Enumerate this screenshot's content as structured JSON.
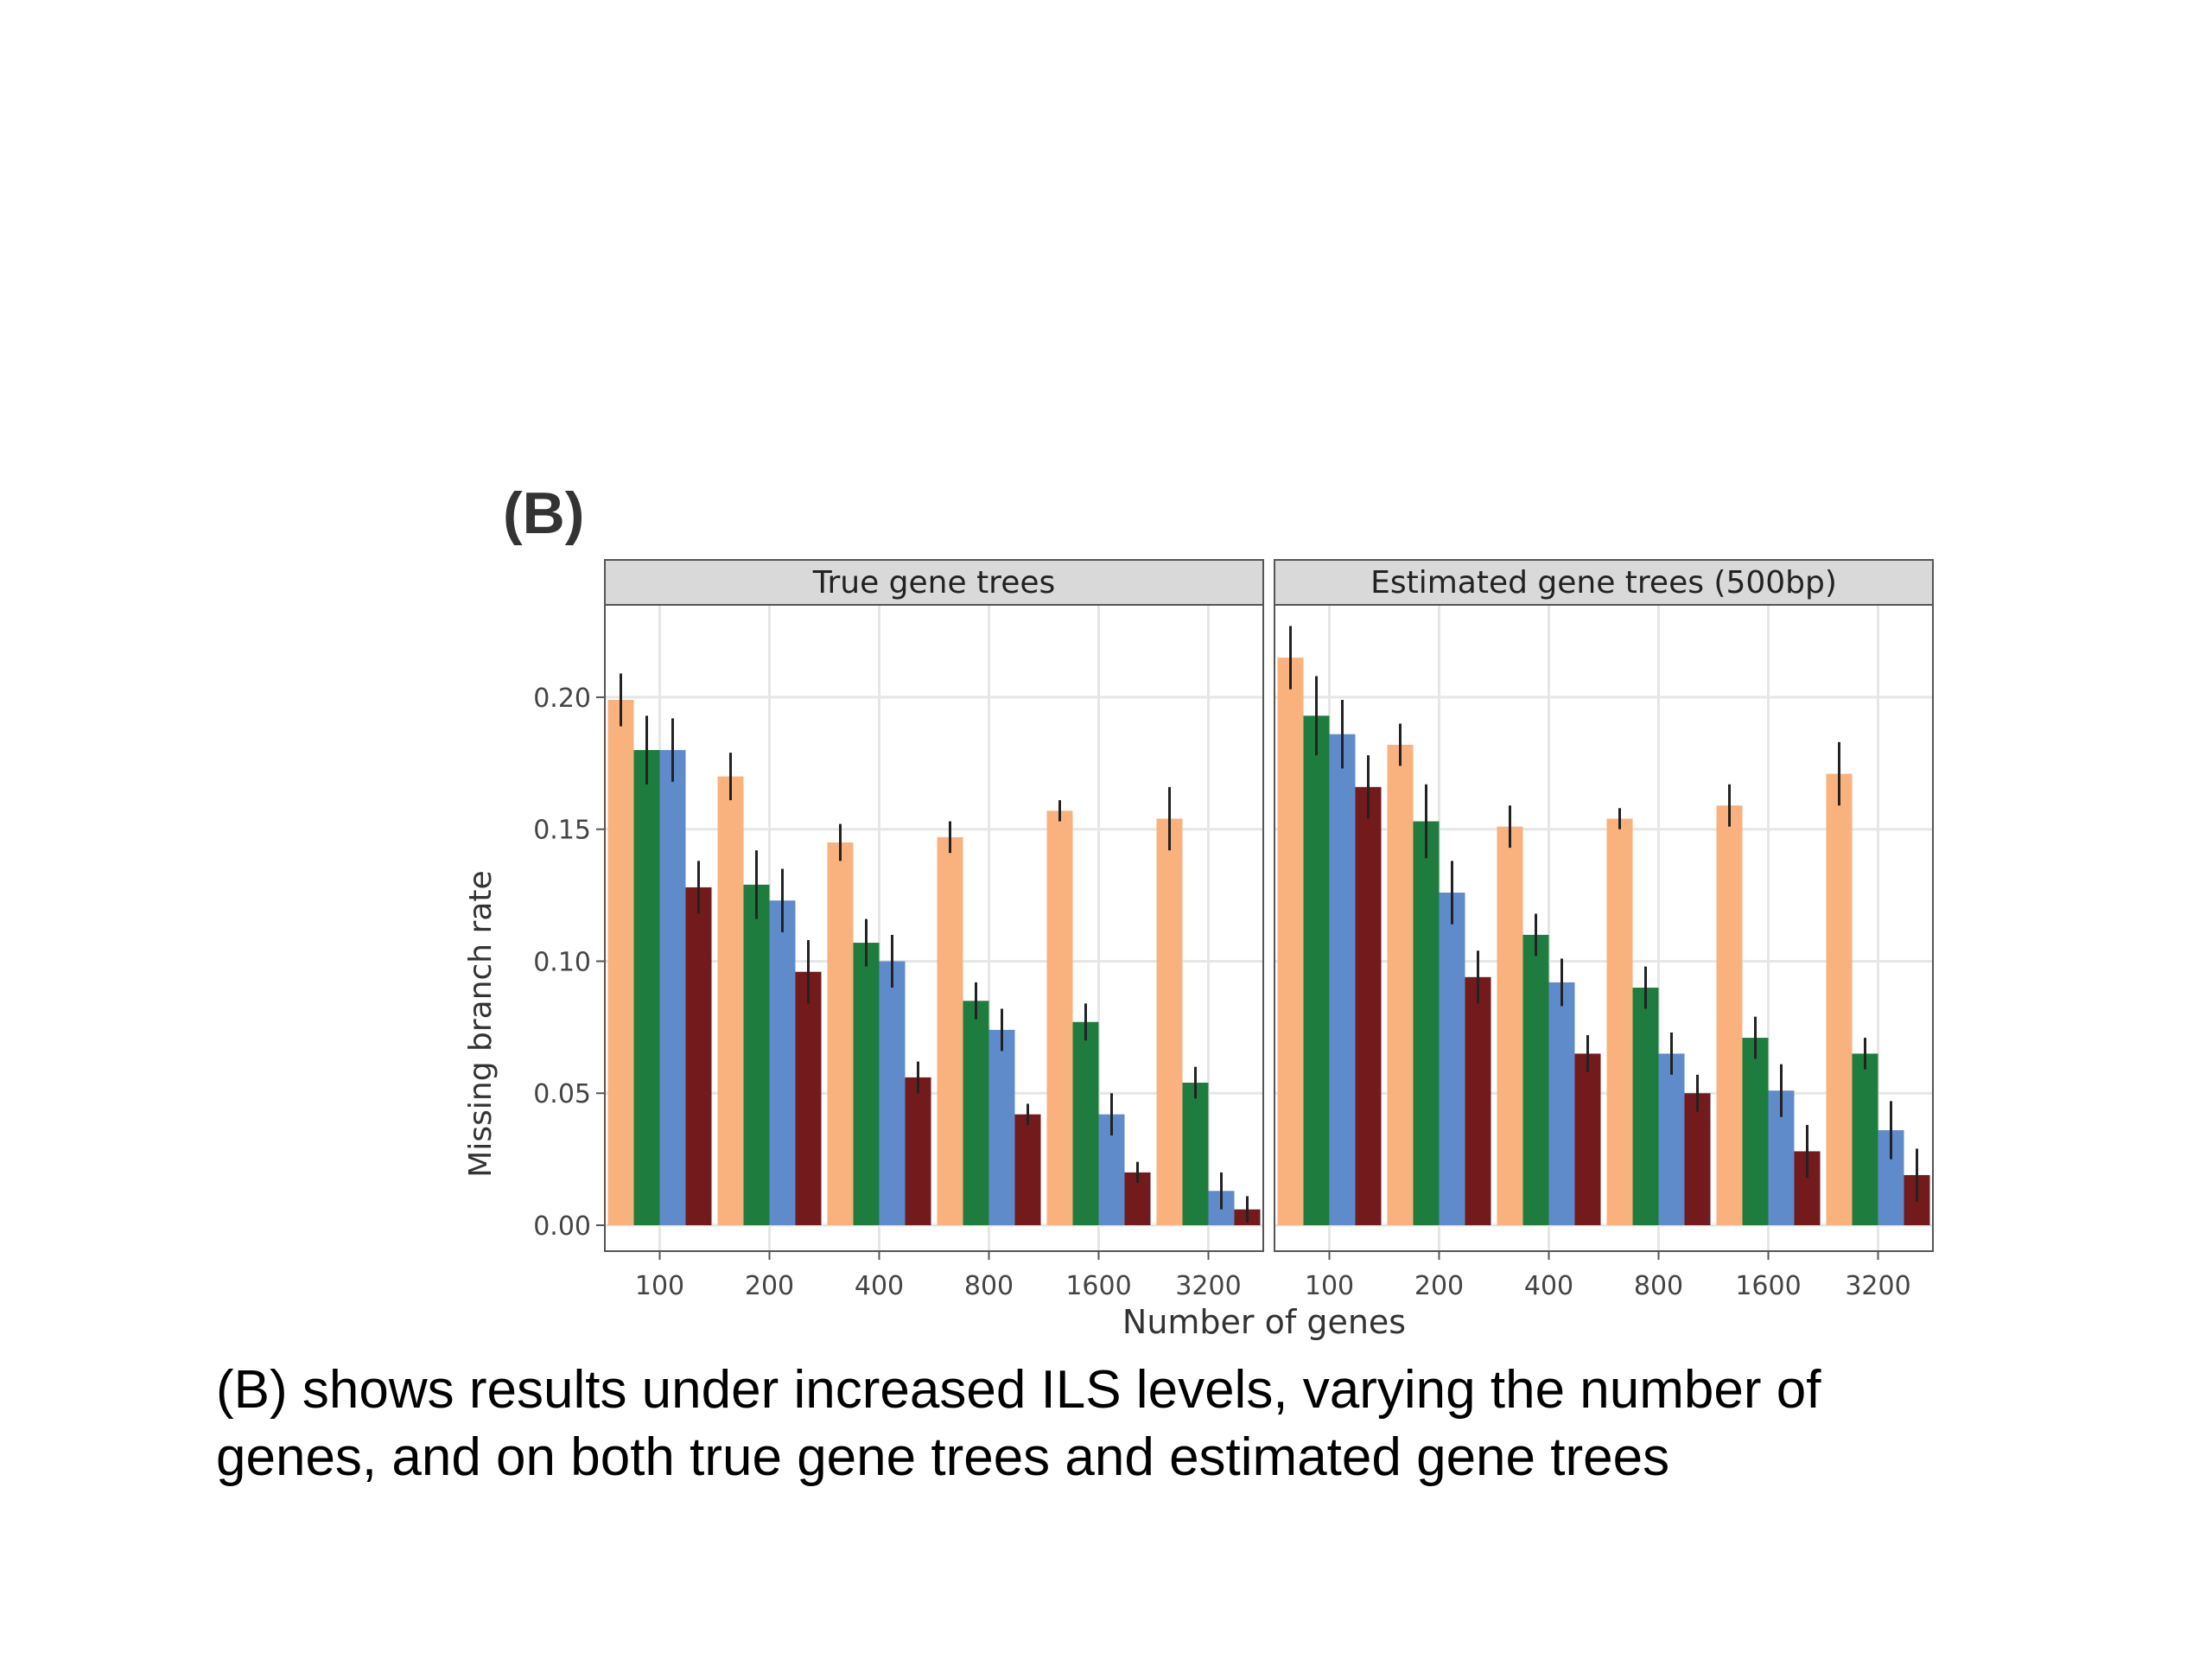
{
  "panel_label": "(B)",
  "caption": {
    "line1": "(B) shows results under increased ILS levels, varying the number of",
    "line2": "genes, and on both true gene trees and estimated gene trees"
  },
  "colors": {
    "series": [
      "#F9B27D",
      "#1E7D3E",
      "#5F8BCB",
      "#731A1C"
    ],
    "error_bar": "#222222",
    "grid": "#E6E6E6",
    "strip_fill": "#D9D9D9",
    "border": "#555555"
  },
  "chart_data": {
    "type": "bar",
    "ylabel": "Missing branch rate",
    "xlabel": "Number of genes",
    "ylim": [
      0,
      0.235
    ],
    "yticks": [
      0.0,
      0.05,
      0.1,
      0.15,
      0.2
    ],
    "ytick_labels": [
      "0.00",
      "0.05",
      "0.10",
      "0.15",
      "0.20"
    ],
    "categories": [
      "100",
      "200",
      "400",
      "800",
      "1600",
      "3200"
    ],
    "grid": true,
    "legend": "none",
    "facets": [
      {
        "title": "True gene trees",
        "series": [
          {
            "values": [
              0.199,
              0.17,
              0.145,
              0.147,
              0.157,
              0.154
            ],
            "err": [
              0.01,
              0.009,
              0.007,
              0.006,
              0.004,
              0.012
            ]
          },
          {
            "values": [
              0.18,
              0.129,
              0.107,
              0.085,
              0.077,
              0.054
            ],
            "err": [
              0.013,
              0.013,
              0.009,
              0.007,
              0.007,
              0.006
            ]
          },
          {
            "values": [
              0.18,
              0.123,
              0.1,
              0.074,
              0.042,
              0.013
            ],
            "err": [
              0.012,
              0.012,
              0.01,
              0.008,
              0.008,
              0.007
            ]
          },
          {
            "values": [
              0.128,
              0.096,
              0.056,
              0.042,
              0.02,
              0.006
            ],
            "err": [
              0.01,
              0.012,
              0.006,
              0.004,
              0.004,
              0.005
            ]
          }
        ]
      },
      {
        "title": "Estimated gene trees (500bp)",
        "series": [
          {
            "values": [
              0.215,
              0.182,
              0.151,
              0.154,
              0.159,
              0.171
            ],
            "err": [
              0.012,
              0.008,
              0.008,
              0.004,
              0.008,
              0.012
            ]
          },
          {
            "values": [
              0.193,
              0.153,
              0.11,
              0.09,
              0.071,
              0.065
            ],
            "err": [
              0.015,
              0.014,
              0.008,
              0.008,
              0.008,
              0.006
            ]
          },
          {
            "values": [
              0.186,
              0.126,
              0.092,
              0.065,
              0.051,
              0.036
            ],
            "err": [
              0.013,
              0.012,
              0.009,
              0.008,
              0.01,
              0.011
            ]
          },
          {
            "values": [
              0.166,
              0.094,
              0.065,
              0.05,
              0.028,
              0.019
            ],
            "err": [
              0.012,
              0.01,
              0.007,
              0.007,
              0.01,
              0.01
            ]
          }
        ]
      }
    ]
  }
}
